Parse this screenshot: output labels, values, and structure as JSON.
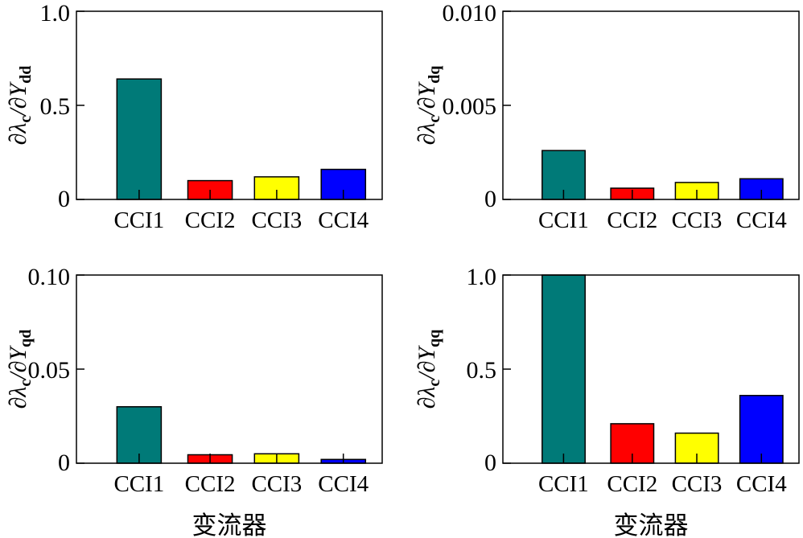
{
  "chart_data": [
    {
      "type": "bar",
      "categories": [
        "CCI1",
        "CCI2",
        "CCI3",
        "CCI4"
      ],
      "values": [
        0.64,
        0.1,
        0.12,
        0.16
      ],
      "colors": [
        "#007a78",
        "#ff0000",
        "#ffff00",
        "#0000ff"
      ],
      "ylim": [
        0,
        1.0
      ],
      "yticks": [
        0,
        0.5,
        1.0
      ],
      "ytick_labels": [
        "0",
        "0.5",
        "1.0"
      ],
      "ylabel": {
        "main": "∂λ",
        "sub1": "c",
        "mid": "/∂Y",
        "sub2": "dd"
      },
      "xlabel": ""
    },
    {
      "type": "bar",
      "categories": [
        "CCI1",
        "CCI2",
        "CCI3",
        "CCI4"
      ],
      "values": [
        0.0026,
        0.0006,
        0.0009,
        0.0011
      ],
      "colors": [
        "#007a78",
        "#ff0000",
        "#ffff00",
        "#0000ff"
      ],
      "ylim": [
        0,
        0.01
      ],
      "yticks": [
        0,
        0.005,
        0.01
      ],
      "ytick_labels": [
        "0",
        "0.005",
        "0.010"
      ],
      "ylabel": {
        "main": "∂λ",
        "sub1": "c",
        "mid": "/∂Y",
        "sub2": "dq"
      },
      "xlabel": ""
    },
    {
      "type": "bar",
      "categories": [
        "CCI1",
        "CCI2",
        "CCI3",
        "CCI4"
      ],
      "values": [
        0.03,
        0.0045,
        0.005,
        0.002
      ],
      "colors": [
        "#007a78",
        "#ff0000",
        "#ffff00",
        "#0000ff"
      ],
      "ylim": [
        0,
        0.1
      ],
      "yticks": [
        0,
        0.05,
        0.1
      ],
      "ytick_labels": [
        "0",
        "0.05",
        "0.10"
      ],
      "ylabel": {
        "main": "∂λ",
        "sub1": "c",
        "mid": "/∂Y",
        "sub2": "qd"
      },
      "xlabel": "变流器"
    },
    {
      "type": "bar",
      "categories": [
        "CCI1",
        "CCI2",
        "CCI3",
        "CCI4"
      ],
      "values": [
        1.0,
        0.21,
        0.16,
        0.36
      ],
      "colors": [
        "#007a78",
        "#ff0000",
        "#ffff00",
        "#0000ff"
      ],
      "ylim": [
        0,
        1.0
      ],
      "yticks": [
        0,
        0.5,
        1.0
      ],
      "ytick_labels": [
        "0",
        "0.5",
        "1.0"
      ],
      "ylabel": {
        "main": "∂λ",
        "sub1": "c",
        "mid": "/∂Y",
        "sub2": "qq"
      },
      "xlabel": "变流器"
    }
  ]
}
